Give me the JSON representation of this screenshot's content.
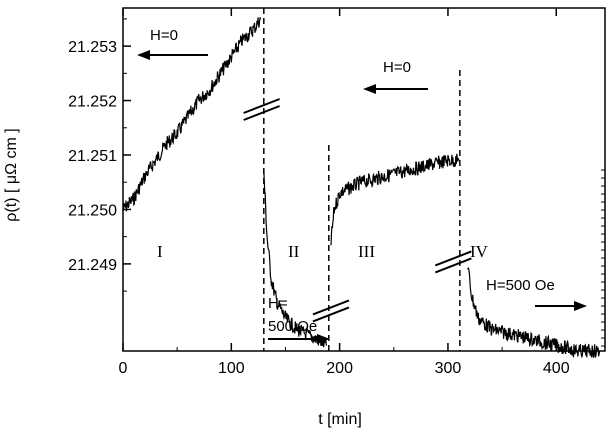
{
  "chart_data": {
    "type": "line",
    "title": "",
    "xlabel": "t [min]",
    "ylabel": "ρ(t) [ μΩ cm ]",
    "xlim": [
      0,
      445
    ],
    "ylim": [
      21.2474,
      21.2537
    ],
    "x_ticks": [
      0,
      100,
      200,
      300,
      400
    ],
    "x_tick_labels": [
      "0",
      "100",
      "200",
      "300",
      "400"
    ],
    "y_ticks": [
      21.249,
      21.25,
      21.251,
      21.252,
      21.253
    ],
    "y_tick_labels": [
      "21.249",
      "21.250",
      "21.251",
      "21.252",
      "21.253"
    ],
    "grid": false,
    "series": [
      {
        "points": [
          [
            0,
            21.25
          ],
          [
            10,
            21.2502
          ],
          [
            20,
            21.2506
          ],
          [
            30,
            21.2509
          ],
          [
            40,
            21.2512
          ],
          [
            50,
            21.2514
          ],
          [
            60,
            21.2517
          ],
          [
            70,
            21.252
          ],
          [
            80,
            21.2522
          ],
          [
            90,
            21.2525
          ],
          [
            100,
            21.2528
          ],
          [
            110,
            21.2531
          ],
          [
            120,
            21.2533
          ],
          [
            127,
            21.2535
          ]
        ]
      },
      {
        "points": [
          [
            130,
            21.2507
          ],
          [
            133,
            21.2495
          ],
          [
            137,
            21.2487
          ],
          [
            142,
            21.2483
          ],
          [
            150,
            21.248
          ],
          [
            160,
            21.2478
          ],
          [
            170,
            21.2477
          ],
          [
            180,
            21.2476
          ],
          [
            188,
            21.2475
          ]
        ]
      },
      {
        "points": [
          [
            192,
            21.2494
          ],
          [
            195,
            21.25
          ],
          [
            200,
            21.2503
          ],
          [
            220,
            21.2505
          ],
          [
            240,
            21.2506
          ],
          [
            260,
            21.2507
          ],
          [
            280,
            21.2508
          ],
          [
            300,
            21.2509
          ],
          [
            310,
            21.2509
          ]
        ]
      },
      {
        "points": [
          [
            318,
            21.249
          ],
          [
            322,
            21.2484
          ],
          [
            328,
            21.248
          ],
          [
            340,
            21.2478
          ],
          [
            360,
            21.2477
          ],
          [
            380,
            21.2476
          ],
          [
            400,
            21.2475
          ],
          [
            420,
            21.2474
          ],
          [
            440,
            21.2474
          ]
        ]
      }
    ],
    "dashed_lines_x": [
      130,
      190,
      311
    ],
    "annotations": {
      "h_zero_left": "H=0",
      "h_zero_middle": "H=0",
      "h_applied_ii_line1": "H=",
      "h_applied_ii_line2": "500 Oe",
      "h_applied_iv": "H=500 Oe"
    },
    "regions": [
      "I",
      "II",
      "III",
      "IV"
    ]
  }
}
